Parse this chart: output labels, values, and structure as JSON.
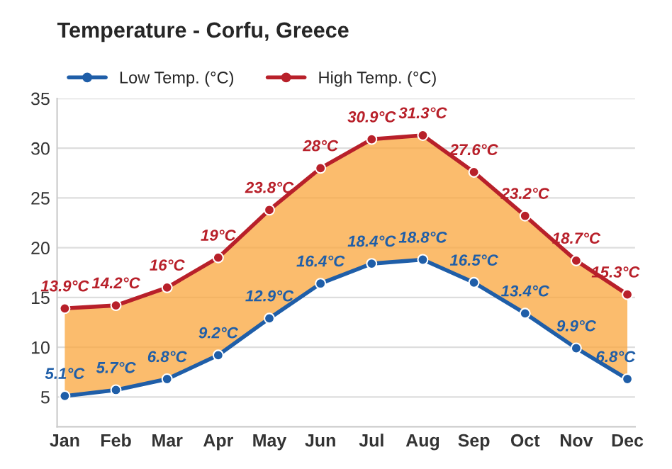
{
  "chart_data": {
    "type": "line",
    "title": "Temperature - Corfu, Greece",
    "categories": [
      "Jan",
      "Feb",
      "Mar",
      "Apr",
      "May",
      "Jun",
      "Jul",
      "Aug",
      "Sep",
      "Oct",
      "Nov",
      "Dec"
    ],
    "series": [
      {
        "name": "Low Temp. (°C)",
        "color": "#1f5ea8",
        "values": [
          5.1,
          5.7,
          6.8,
          9.2,
          12.9,
          16.4,
          18.4,
          18.8,
          16.5,
          13.4,
          9.9,
          6.8
        ],
        "value_labels": [
          "5.1°C",
          "5.7°C",
          "6.8°C",
          "9.2°C",
          "12.9°C",
          "16.4°C",
          "18.4°C",
          "18.8°C",
          "16.5°C",
          "13.4°C",
          "9.9°C",
          "6.8°C"
        ]
      },
      {
        "name": "High Temp. (°C)",
        "color": "#b8202a",
        "values": [
          13.9,
          14.2,
          16,
          19,
          23.8,
          28,
          30.9,
          31.3,
          27.6,
          23.2,
          18.7,
          15.3
        ],
        "value_labels": [
          "13.9°C",
          "14.2°C",
          "16°C",
          "19°C",
          "23.8°C",
          "28°C",
          "30.9°C",
          "31.3°C",
          "27.6°C",
          "23.2°C",
          "18.7°C",
          "15.3°C"
        ],
        "lower": [
          5.1,
          5.7,
          6.8,
          9.2,
          12.9,
          16.4,
          18.4,
          18.8,
          16.5,
          13.4,
          9.9,
          6.8
        ],
        "upper": [
          13.9,
          14.2,
          16,
          19,
          23.8,
          28,
          30.9,
          31.3,
          27.6,
          23.2,
          18.7,
          15.3
        ]
      }
    ],
    "ylim": [
      2,
      35
    ],
    "yticks": [
      5,
      10,
      15,
      20,
      25,
      30,
      35
    ],
    "grid": "y",
    "legend": "top left",
    "marker": "circle",
    "line_style": "solid"
  }
}
